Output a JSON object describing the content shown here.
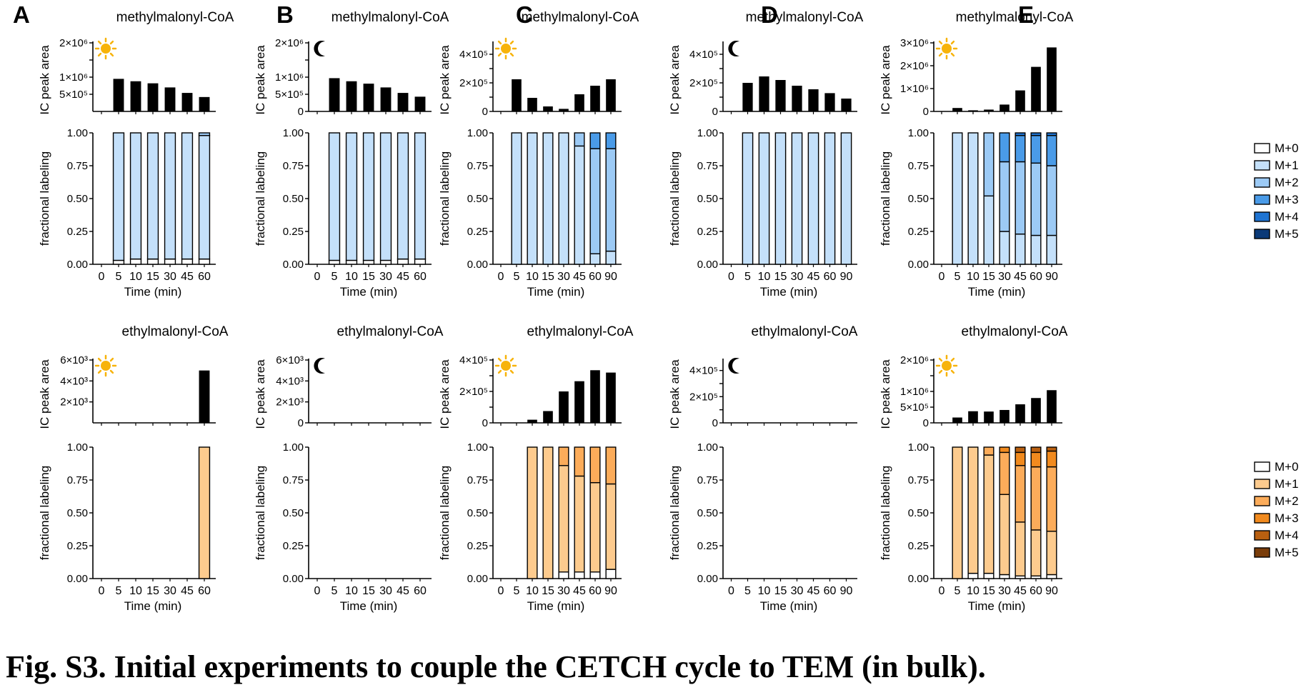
{
  "caption": "Fig. S3. Initial experiments to couple the CETCH cycle to TEM (in bulk).",
  "colors": {
    "bar": "#000000",
    "blue": [
      "#ffffff",
      "#c4e0fa",
      "#9ccaf5",
      "#4a9be8",
      "#1f74d2",
      "#0b3a78"
    ],
    "orange": [
      "#ffffff",
      "#fdcb8e",
      "#fcac5a",
      "#f18a1e",
      "#b85f10",
      "#7a3d0a"
    ],
    "sun": "#f7b30a",
    "moon": "#000000"
  },
  "labels": {
    "ic_ylabel": "IC peak area",
    "frac_ylabel": "fractional labeling",
    "xlabel": "Time (min)",
    "frac_ticks": [
      "0.00",
      "0.25",
      "0.50",
      "0.75",
      "1.00"
    ]
  },
  "legend_blue": [
    "M+0",
    "M+1",
    "M+2",
    "M+3",
    "M+4",
    "M+5"
  ],
  "legend_orange": [
    "M+0",
    "M+1",
    "M+2",
    "M+3",
    "M+4",
    "M+5"
  ],
  "chart_data": [
    {
      "panel": "A",
      "compound": "methylmalonyl-CoA",
      "icon": "sun",
      "palette": "blue",
      "categories": [
        "0",
        "5",
        "10",
        "15",
        "30",
        "45",
        "60"
      ],
      "peak_area": {
        "values": [
          0,
          950000,
          880000,
          820000,
          700000,
          540000,
          420000
        ],
        "ylim": [
          0,
          2000000
        ],
        "tick_values": [
          500000,
          1000000,
          1500000,
          2000000
        ],
        "tick_labels": [
          "5×10⁵",
          "1×10⁶",
          "",
          "2×10⁶"
        ]
      },
      "fractional_labeling": [
        [],
        [
          0.03,
          0.97
        ],
        [
          0.04,
          0.96
        ],
        [
          0.04,
          0.96
        ],
        [
          0.04,
          0.96
        ],
        [
          0.04,
          0.96
        ],
        [
          0.04,
          0.94,
          0.02
        ]
      ]
    },
    {
      "panel": "B",
      "compound": "methylmalonyl-CoA",
      "icon": "moon",
      "palette": "blue",
      "categories": [
        "0",
        "5",
        "10",
        "15",
        "30",
        "45",
        "60"
      ],
      "peak_area": {
        "values": [
          0,
          970000,
          880000,
          810000,
          700000,
          540000,
          430000
        ],
        "ylim": [
          0,
          2000000
        ],
        "tick_values": [
          0,
          500000,
          1000000,
          1500000,
          2000000
        ],
        "tick_labels": [
          "0",
          "5×10⁵",
          "1×10⁶",
          "",
          "2×10⁶"
        ]
      },
      "fractional_labeling": [
        [],
        [
          0.03,
          0.97
        ],
        [
          0.03,
          0.97
        ],
        [
          0.03,
          0.97
        ],
        [
          0.03,
          0.97
        ],
        [
          0.04,
          0.96
        ],
        [
          0.04,
          0.96
        ]
      ]
    },
    {
      "panel": "C",
      "compound": "methylmalonyl-CoA",
      "icon": "sun",
      "palette": "blue",
      "categories": [
        "0",
        "5",
        "10",
        "15",
        "30",
        "45",
        "60",
        "90"
      ],
      "peak_area": {
        "values": [
          0,
          225000,
          95000,
          35000,
          18000,
          120000,
          180000,
          225000
        ],
        "ylim": [
          0,
          480000
        ],
        "tick_values": [
          0,
          100000,
          200000,
          300000,
          400000
        ],
        "tick_labels": [
          "0",
          "",
          "2×10⁵",
          "",
          "4×10⁵"
        ]
      },
      "fractional_labeling": [
        [],
        [
          0,
          1.0
        ],
        [
          0,
          1.0
        ],
        [
          0,
          1.0
        ],
        [
          0,
          1.0,
          0,
          0
        ],
        [
          0,
          0.9,
          0.1
        ],
        [
          0,
          0.08,
          0.8,
          0.12
        ],
        [
          0,
          0.1,
          0.78,
          0.12
        ]
      ]
    },
    {
      "panel": "D",
      "compound": "methylmalonyl-CoA",
      "icon": "moon",
      "palette": "blue",
      "categories": [
        "0",
        "5",
        "10",
        "15",
        "30",
        "45",
        "60",
        "90"
      ],
      "peak_area": {
        "values": [
          0,
          200000,
          245000,
          220000,
          180000,
          155000,
          128000,
          90000
        ],
        "ylim": [
          0,
          480000
        ],
        "tick_values": [
          0,
          100000,
          200000,
          300000,
          400000
        ],
        "tick_labels": [
          "0",
          "",
          "2×10⁵",
          "",
          "4×10⁵"
        ]
      },
      "fractional_labeling": [
        [],
        [
          0,
          1.0
        ],
        [
          0,
          1.0
        ],
        [
          0,
          1.0
        ],
        [
          0,
          1.0
        ],
        [
          0,
          1.0
        ],
        [
          0,
          1.0
        ],
        [
          0,
          1.0
        ]
      ]
    },
    {
      "panel": "E",
      "compound": "methylmalonyl-CoA",
      "icon": "sun",
      "palette": "blue",
      "categories": [
        "0",
        "5",
        "10",
        "15",
        "30",
        "45",
        "60",
        "90"
      ],
      "peak_area": {
        "values": [
          0,
          150000,
          50000,
          80000,
          300000,
          920000,
          1950000,
          2800000
        ],
        "ylim": [
          0,
          3000000
        ],
        "tick_values": [
          0,
          1000000,
          2000000,
          3000000
        ],
        "tick_labels": [
          "0",
          "1×10⁶",
          "2×10⁶",
          "3×10⁶"
        ]
      },
      "fractional_labeling": [
        [],
        [
          0,
          1.0
        ],
        [
          0,
          1.0
        ],
        [
          0,
          0.52,
          0.48
        ],
        [
          0,
          0.25,
          0.53,
          0.22
        ],
        [
          0,
          0.23,
          0.55,
          0.2,
          0.02
        ],
        [
          0,
          0.22,
          0.55,
          0.21,
          0.02
        ],
        [
          0,
          0.22,
          0.53,
          0.23,
          0.02
        ]
      ]
    },
    {
      "panel": "",
      "compound": "ethylmalonyl-CoA",
      "icon": "sun",
      "palette": "orange",
      "categories": [
        "0",
        "5",
        "10",
        "15",
        "30",
        "45",
        "60"
      ],
      "peak_area": {
        "values": [
          0,
          0,
          0,
          0,
          0,
          0,
          5000
        ],
        "ylim": [
          0,
          6000
        ],
        "tick_values": [
          2000,
          4000,
          6000
        ],
        "tick_labels": [
          "2×10³",
          "4×10³",
          "6×10³"
        ]
      },
      "fractional_labeling": [
        [],
        [],
        [],
        [],
        [],
        [],
        [
          0,
          1.0
        ]
      ]
    },
    {
      "panel": "",
      "compound": "ethylmalonyl-CoA",
      "icon": "moon",
      "palette": "orange",
      "categories": [
        "0",
        "5",
        "10",
        "15",
        "30",
        "45",
        "60"
      ],
      "peak_area": {
        "values": [
          0,
          0,
          0,
          0,
          0,
          0,
          0
        ],
        "ylim": [
          0,
          6000
        ],
        "tick_values": [
          0,
          2000,
          4000,
          6000
        ],
        "tick_labels": [
          "0",
          "2×10³",
          "4×10³",
          "6×10³"
        ]
      },
      "fractional_labeling": [
        [],
        [],
        [],
        [],
        [],
        [],
        []
      ]
    },
    {
      "panel": "",
      "compound": "ethylmalonyl-CoA",
      "icon": "sun",
      "palette": "orange",
      "categories": [
        "0",
        "5",
        "10",
        "15",
        "30",
        "45",
        "60",
        "90"
      ],
      "peak_area": {
        "values": [
          0,
          0,
          20000,
          75000,
          200000,
          265000,
          335000,
          320000
        ],
        "ylim": [
          0,
          400000
        ],
        "tick_values": [
          0,
          100000,
          200000,
          300000,
          400000
        ],
        "tick_labels": [
          "0",
          "",
          "2×10⁵",
          "",
          "4×10⁵"
        ]
      },
      "fractional_labeling": [
        [],
        [],
        [
          0,
          1.0
        ],
        [
          0,
          1.0
        ],
        [
          0.05,
          0.81,
          0.14
        ],
        [
          0.05,
          0.73,
          0.22
        ],
        [
          0.05,
          0.68,
          0.27
        ],
        [
          0.07,
          0.65,
          0.28
        ]
      ]
    },
    {
      "panel": "",
      "compound": "ethylmalonyl-CoA",
      "icon": "moon",
      "palette": "orange",
      "categories": [
        "0",
        "5",
        "10",
        "15",
        "30",
        "45",
        "60",
        "90"
      ],
      "peak_area": {
        "values": [
          0,
          0,
          0,
          0,
          0,
          0,
          0,
          0
        ],
        "ylim": [
          0,
          480000
        ],
        "tick_values": [
          0,
          100000,
          200000,
          300000,
          400000
        ],
        "tick_labels": [
          "0",
          "",
          "2×10⁵",
          "",
          "4×10⁵"
        ]
      },
      "fractional_labeling": [
        [],
        [],
        [],
        [],
        [],
        [],
        [],
        []
      ]
    },
    {
      "panel": "",
      "compound": "ethylmalonyl-CoA",
      "icon": "sun",
      "palette": "orange",
      "categories": [
        "0",
        "5",
        "10",
        "15",
        "30",
        "45",
        "60",
        "90"
      ],
      "peak_area": {
        "values": [
          0,
          170000,
          370000,
          360000,
          410000,
          590000,
          790000,
          1040000
        ],
        "ylim": [
          0,
          2000000
        ],
        "tick_values": [
          0,
          500000,
          1000000,
          1500000,
          2000000
        ],
        "tick_labels": [
          "0",
          "5×10⁵",
          "1×10⁶",
          "",
          "2×10⁶"
        ]
      },
      "fractional_labeling": [
        [],
        [
          0,
          1.0
        ],
        [
          0.04,
          0.96
        ],
        [
          0.04,
          0.9,
          0.06
        ],
        [
          0.03,
          0.61,
          0.32,
          0.04
        ],
        [
          0.02,
          0.41,
          0.43,
          0.1,
          0.04
        ],
        [
          0.02,
          0.35,
          0.48,
          0.11,
          0.04
        ],
        [
          0.03,
          0.33,
          0.49,
          0.12,
          0.03
        ]
      ]
    }
  ]
}
